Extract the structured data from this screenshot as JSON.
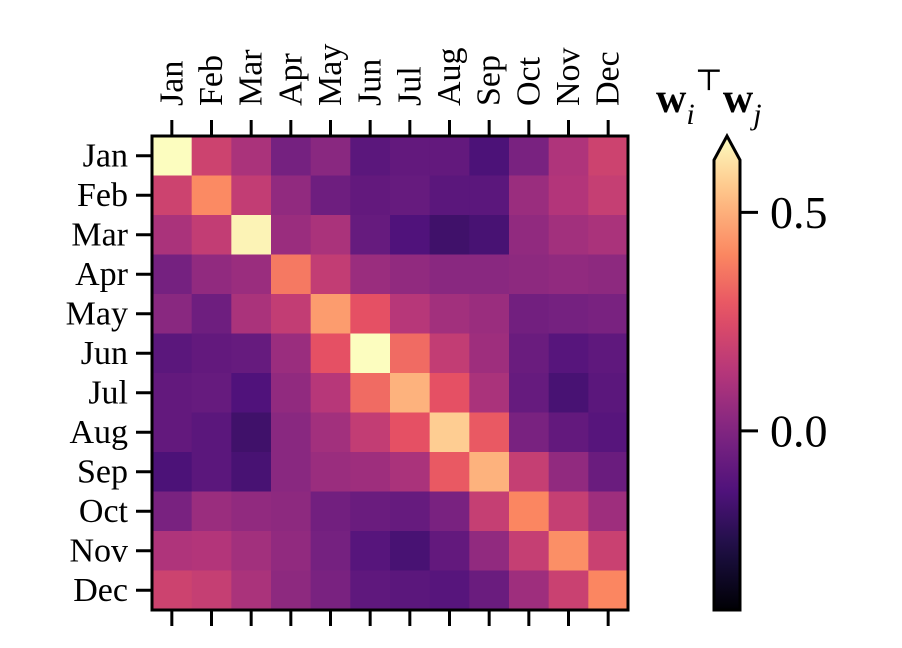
{
  "chart_data": {
    "type": "heatmap",
    "x_categories": [
      "Jan",
      "Feb",
      "Mar",
      "Apr",
      "May",
      "Jun",
      "Jul",
      "Aug",
      "Sep",
      "Oct",
      "Nov",
      "Dec"
    ],
    "y_categories": [
      "Jan",
      "Feb",
      "Mar",
      "Apr",
      "May",
      "Jun",
      "Jul",
      "Aug",
      "Sep",
      "Oct",
      "Nov",
      "Dec"
    ],
    "values": [
      [
        0.62,
        0.17,
        0.08,
        -0.05,
        0.0,
        -0.12,
        -0.1,
        -0.1,
        -0.16,
        -0.04,
        0.09,
        0.17
      ],
      [
        0.17,
        0.37,
        0.14,
        0.02,
        -0.07,
        -0.1,
        -0.09,
        -0.12,
        -0.12,
        0.04,
        0.1,
        0.15
      ],
      [
        0.08,
        0.14,
        0.6,
        0.04,
        0.08,
        -0.09,
        -0.15,
        -0.19,
        -0.17,
        0.02,
        0.06,
        0.08
      ],
      [
        -0.05,
        0.02,
        0.04,
        0.33,
        0.14,
        0.04,
        0.02,
        0.0,
        0.0,
        0.01,
        0.02,
        0.01
      ],
      [
        0.0,
        -0.07,
        0.08,
        0.14,
        0.41,
        0.24,
        0.11,
        0.06,
        0.04,
        -0.06,
        -0.05,
        -0.04
      ],
      [
        -0.12,
        -0.1,
        -0.09,
        0.04,
        0.24,
        0.62,
        0.3,
        0.14,
        0.05,
        -0.08,
        -0.13,
        -0.11
      ],
      [
        -0.1,
        -0.09,
        -0.15,
        0.02,
        0.11,
        0.3,
        0.46,
        0.24,
        0.08,
        -0.09,
        -0.17,
        -0.12
      ],
      [
        -0.1,
        -0.12,
        -0.19,
        0.0,
        0.06,
        0.14,
        0.24,
        0.52,
        0.26,
        -0.04,
        -0.1,
        -0.13
      ],
      [
        -0.16,
        -0.12,
        -0.17,
        0.0,
        0.04,
        0.05,
        0.08,
        0.26,
        0.46,
        0.15,
        0.02,
        -0.08
      ],
      [
        -0.04,
        0.04,
        0.02,
        0.01,
        -0.06,
        -0.08,
        -0.09,
        -0.04,
        0.15,
        0.36,
        0.15,
        0.05
      ],
      [
        0.09,
        0.1,
        0.06,
        0.02,
        -0.05,
        -0.13,
        -0.17,
        -0.1,
        0.02,
        0.15,
        0.38,
        0.16
      ],
      [
        0.17,
        0.15,
        0.08,
        0.01,
        -0.04,
        -0.11,
        -0.12,
        -0.13,
        -0.08,
        0.05,
        0.16,
        0.36
      ]
    ],
    "colormap": "magma",
    "vmin": -0.41,
    "vmax": 0.62,
    "colorbar": {
      "title": "w_i^T w_j",
      "ticks": [
        0.0,
        0.5
      ],
      "tick_labels": [
        "0.0",
        "0.5"
      ],
      "extend": "max"
    },
    "xtick_position": "top",
    "xtick_rotation": 90,
    "grid": false
  },
  "colorbar_title_parts": {
    "w_i": "w",
    "sub_i": "i",
    "transpose": "⊤",
    "w_j": "w",
    "sub_j": "j"
  }
}
